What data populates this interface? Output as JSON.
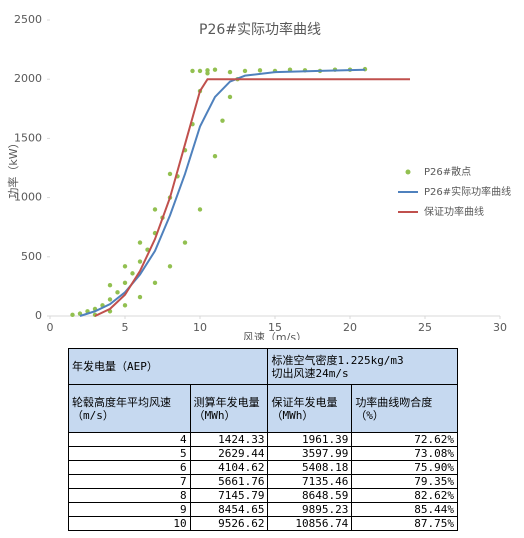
{
  "chart_data": {
    "type": "scatter-line",
    "title": "P26#实际功率曲线",
    "xlabel": "风速（m/s）",
    "ylabel": "功率（kW）",
    "xlim": [
      0,
      30
    ],
    "xticks": [
      0,
      5,
      10,
      15,
      20,
      25,
      30
    ],
    "ylim": [
      0,
      2500
    ],
    "yticks": [
      0,
      500,
      1000,
      1500,
      2000,
      2500
    ],
    "grid": false,
    "legend": "right",
    "series": [
      {
        "name": "P26#散点",
        "color": "#92c050",
        "kind": "scatter",
        "x": [
          1.5,
          2,
          2.5,
          3,
          3,
          3.5,
          4,
          4,
          4.5,
          5,
          5,
          5.5,
          6,
          6,
          6.5,
          7,
          7,
          7.5,
          8,
          8,
          8.5,
          9,
          9,
          9.5,
          10,
          10,
          10.5,
          11,
          11,
          11.5,
          12,
          12,
          12.5,
          13,
          14,
          15,
          16,
          17,
          18,
          19,
          20,
          21,
          9.5,
          10,
          10.5,
          8,
          7,
          6,
          5,
          4
        ],
        "values": [
          10,
          20,
          40,
          60,
          10,
          90,
          140,
          40,
          200,
          280,
          90,
          360,
          460,
          160,
          560,
          700,
          280,
          830,
          1000,
          420,
          1180,
          1400,
          620,
          1620,
          1900,
          900,
          2050,
          2080,
          1350,
          1650,
          2060,
          1850,
          2000,
          2070,
          2075,
          2070,
          2080,
          2075,
          2070,
          2080,
          2080,
          2085,
          2070,
          2070,
          2075,
          1200,
          900,
          620,
          420,
          260
        ]
      },
      {
        "name": "P26#实际功率曲线",
        "color": "#4f81bd",
        "kind": "line",
        "x": [
          2,
          3,
          4,
          5,
          6,
          7,
          8,
          9,
          10,
          11,
          12,
          13,
          15,
          18,
          21
        ],
        "values": [
          0,
          40,
          100,
          200,
          350,
          550,
          850,
          1200,
          1600,
          1850,
          1980,
          2030,
          2060,
          2070,
          2080
        ]
      },
      {
        "name": "保证功率曲线",
        "color": "#c0504d",
        "kind": "line",
        "x": [
          3,
          4,
          5,
          6,
          7,
          8,
          9,
          10,
          10.5,
          24
        ],
        "values": [
          0,
          60,
          180,
          380,
          650,
          1000,
          1450,
          1900,
          2000,
          2000
        ]
      }
    ]
  },
  "table": {
    "header": [
      [
        "年发电量（AEP）",
        "标准空气密度1.225kg/m3",
        "切出风速24m/s"
      ],
      [
        "轮毂高度年平均风速（m/s）",
        "测算年发电量（MWh）",
        "保证年发电量（MWh）",
        "功率曲线吻合度（%）"
      ]
    ],
    "rows": [
      [
        "4",
        "1424.33",
        "1961.39",
        "72.62%"
      ],
      [
        "5",
        "2629.44",
        "3597.99",
        "73.08%"
      ],
      [
        "6",
        "4104.62",
        "5408.18",
        "75.90%"
      ],
      [
        "7",
        "5661.76",
        "7135.46",
        "79.35%"
      ],
      [
        "8",
        "7145.79",
        "8648.59",
        "82.62%"
      ],
      [
        "9",
        "8454.65",
        "9895.23",
        "85.44%"
      ],
      [
        "10",
        "9526.62",
        "10856.74",
        "87.75%"
      ]
    ]
  }
}
